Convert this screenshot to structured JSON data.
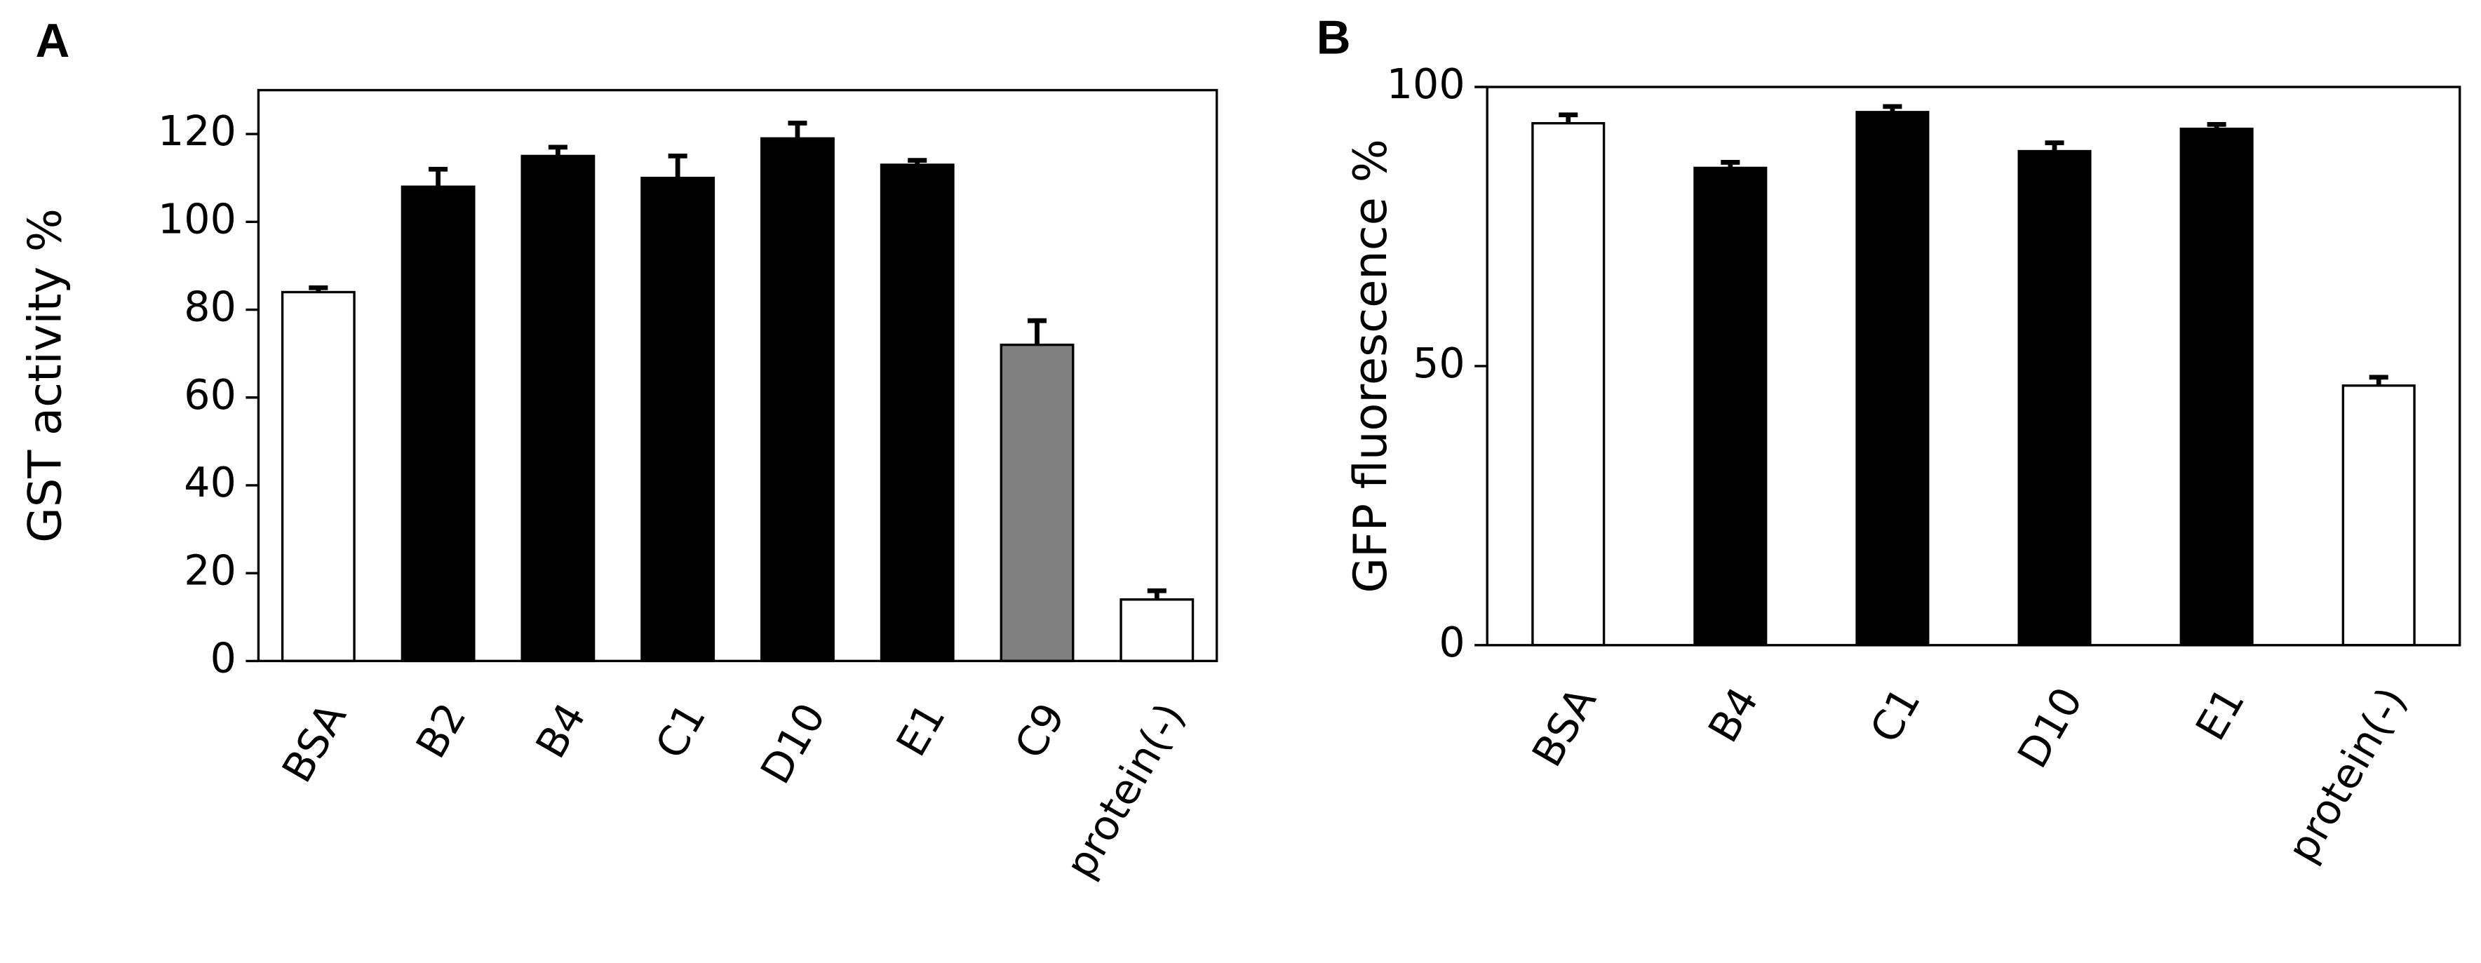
{
  "chart_data": [
    {
      "type": "bar",
      "label": "A",
      "ylabel": "GST activity %",
      "categories": [
        "BSA",
        "B2",
        "B4",
        "C1",
        "D10",
        "E1",
        "C9",
        "protein(-)"
      ],
      "values": [
        84,
        108,
        115,
        110,
        119,
        113,
        72,
        14
      ],
      "errors": [
        1,
        4,
        2,
        5,
        3.5,
        1,
        5.5,
        2
      ],
      "colors": [
        "#ffffff",
        "#000000",
        "#000000",
        "#000000",
        "#000000",
        "#000000",
        "#808080",
        "#ffffff"
      ],
      "ylim": [
        0,
        130
      ],
      "yticks": [
        0,
        20,
        40,
        60,
        80,
        100,
        120
      ]
    },
    {
      "type": "bar",
      "label": "B",
      "ylabel": "GFP fluorescence %",
      "categories": [
        "BSA",
        "B4",
        "C1",
        "D10",
        "E1",
        "protein(-)"
      ],
      "values": [
        93.5,
        85.5,
        95.5,
        88.5,
        92.5,
        46.5
      ],
      "errors": [
        1.5,
        1,
        1,
        1.5,
        0.8,
        1.5
      ],
      "colors": [
        "#ffffff",
        "#000000",
        "#000000",
        "#000000",
        "#000000",
        "#ffffff"
      ],
      "ylim": [
        0,
        100
      ],
      "yticks": [
        0,
        50,
        100
      ]
    }
  ]
}
